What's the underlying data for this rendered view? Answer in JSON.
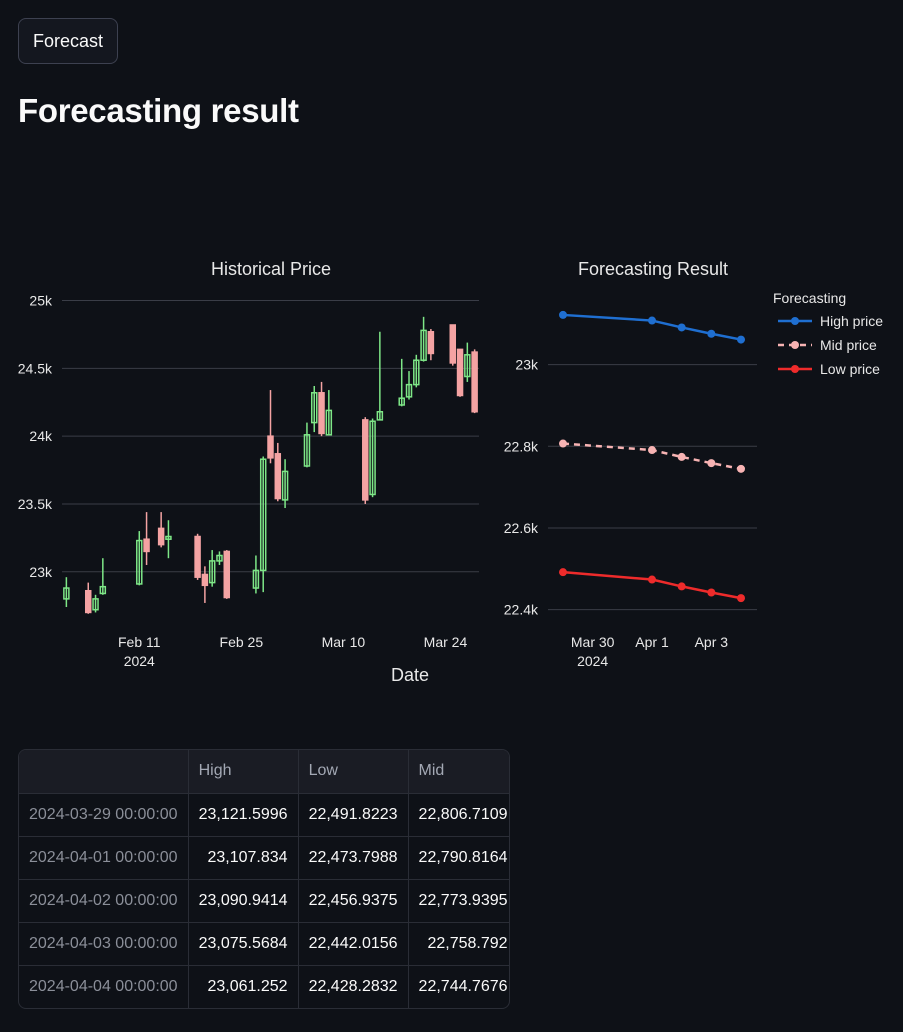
{
  "button": {
    "label": "Forecast"
  },
  "heading": "Forecasting result",
  "chart_data": [
    {
      "type": "candlestick",
      "title": "Historical Price",
      "xlabel": "Date",
      "ylabel": "",
      "ylim": [
        22600,
        25100
      ],
      "yticks": [
        23000,
        23500,
        24000,
        24500,
        25000
      ],
      "ytick_labels": [
        "23k",
        "23.5k",
        "24k",
        "24.5k",
        "25k"
      ],
      "xticks": [
        {
          "date": "2024-02-11",
          "label": "Feb 11",
          "sub": "2024"
        },
        {
          "date": "2024-02-25",
          "label": "Feb 25",
          "sub": ""
        },
        {
          "date": "2024-03-10",
          "label": "Mar 10",
          "sub": ""
        },
        {
          "date": "2024-03-24",
          "label": "Mar 24",
          "sub": ""
        }
      ],
      "colors": {
        "up": "#7ee787",
        "down": "#f4a3a3"
      },
      "candles": [
        {
          "date": "2024-02-01",
          "open": 22800,
          "high": 22960,
          "low": 22740,
          "close": 22880
        },
        {
          "date": "2024-02-04",
          "open": 22860,
          "high": 22920,
          "low": 22690,
          "close": 22700
        },
        {
          "date": "2024-02-05",
          "open": 22720,
          "high": 22830,
          "low": 22700,
          "close": 22800
        },
        {
          "date": "2024-02-06",
          "open": 22840,
          "high": 23100,
          "low": 22830,
          "close": 22890
        },
        {
          "date": "2024-02-11",
          "open": 22910,
          "high": 23300,
          "low": 22900,
          "close": 23230
        },
        {
          "date": "2024-02-12",
          "open": 23240,
          "high": 23440,
          "low": 23050,
          "close": 23150
        },
        {
          "date": "2024-02-14",
          "open": 23320,
          "high": 23440,
          "low": 23180,
          "close": 23200
        },
        {
          "date": "2024-02-15",
          "open": 23240,
          "high": 23380,
          "low": 23100,
          "close": 23260
        },
        {
          "date": "2024-02-19",
          "open": 23260,
          "high": 23280,
          "low": 22940,
          "close": 22960
        },
        {
          "date": "2024-02-20",
          "open": 22980,
          "high": 23040,
          "low": 22770,
          "close": 22900
        },
        {
          "date": "2024-02-21",
          "open": 22920,
          "high": 23160,
          "low": 22890,
          "close": 23080
        },
        {
          "date": "2024-02-22",
          "open": 23080,
          "high": 23150,
          "low": 23050,
          "close": 23120
        },
        {
          "date": "2024-02-23",
          "open": 23150,
          "high": 23160,
          "low": 22800,
          "close": 22810
        },
        {
          "date": "2024-02-27",
          "open": 22880,
          "high": 23120,
          "low": 22840,
          "close": 23010
        },
        {
          "date": "2024-02-28",
          "open": 23010,
          "high": 23850,
          "low": 22850,
          "close": 23830
        },
        {
          "date": "2024-02-29",
          "open": 24000,
          "high": 24340,
          "low": 23800,
          "close": 23840
        },
        {
          "date": "2024-03-01",
          "open": 23870,
          "high": 23950,
          "low": 23520,
          "close": 23540
        },
        {
          "date": "2024-03-02",
          "open": 23530,
          "high": 23830,
          "low": 23470,
          "close": 23740
        },
        {
          "date": "2024-03-05",
          "open": 23780,
          "high": 24100,
          "low": 23770,
          "close": 24010
        },
        {
          "date": "2024-03-06",
          "open": 24100,
          "high": 24370,
          "low": 24030,
          "close": 24320
        },
        {
          "date": "2024-03-07",
          "open": 24320,
          "high": 24400,
          "low": 24000,
          "close": 24020
        },
        {
          "date": "2024-03-08",
          "open": 24010,
          "high": 24340,
          "low": 24010,
          "close": 24190
        },
        {
          "date": "2024-03-13",
          "open": 24120,
          "high": 24140,
          "low": 23500,
          "close": 23530
        },
        {
          "date": "2024-03-14",
          "open": 23570,
          "high": 24130,
          "low": 23550,
          "close": 24110
        },
        {
          "date": "2024-03-15",
          "open": 24120,
          "high": 24770,
          "low": 24120,
          "close": 24180
        },
        {
          "date": "2024-03-18",
          "open": 24230,
          "high": 24570,
          "low": 24220,
          "close": 24280
        },
        {
          "date": "2024-03-19",
          "open": 24290,
          "high": 24480,
          "low": 24270,
          "close": 24380
        },
        {
          "date": "2024-03-20",
          "open": 24380,
          "high": 24600,
          "low": 24360,
          "close": 24560
        },
        {
          "date": "2024-03-21",
          "open": 24560,
          "high": 24880,
          "low": 24550,
          "close": 24780
        },
        {
          "date": "2024-03-22",
          "open": 24770,
          "high": 24790,
          "low": 24560,
          "close": 24610
        },
        {
          "date": "2024-03-25",
          "open": 24820,
          "high": 24820,
          "low": 24520,
          "close": 24540
        },
        {
          "date": "2024-03-26",
          "open": 24640,
          "high": 24640,
          "low": 24290,
          "close": 24300
        },
        {
          "date": "2024-03-27",
          "open": 24440,
          "high": 24690,
          "low": 24400,
          "close": 24600
        },
        {
          "date": "2024-03-28",
          "open": 24620,
          "high": 24640,
          "low": 24170,
          "close": 24180
        }
      ]
    },
    {
      "type": "line",
      "title": "Forecasting Result",
      "xlabel": "",
      "ylabel": "",
      "ylim": [
        22360,
        23190
      ],
      "yticks": [
        22400,
        22600,
        22800,
        23000
      ],
      "ytick_labels": [
        "22.4k",
        "22.6k",
        "22.8k",
        "23k"
      ],
      "xticks": [
        {
          "date": "2024-03-30",
          "label": "Mar 30",
          "sub": "2024"
        },
        {
          "date": "2024-04-01",
          "label": "Apr 1",
          "sub": ""
        },
        {
          "date": "2024-04-03",
          "label": "Apr 3",
          "sub": ""
        }
      ],
      "x": [
        "2024-03-29",
        "2024-04-01",
        "2024-04-02",
        "2024-04-03",
        "2024-04-04"
      ],
      "legend_title": "Forecasting",
      "legend_position": "right",
      "series": [
        {
          "name": "High price",
          "color": "#1f6fd1",
          "dash": false,
          "values": [
            23121.5996,
            23107.834,
            23090.9414,
            23075.5684,
            23061.252
          ]
        },
        {
          "name": "Mid price",
          "color": "#f7b3b3",
          "dash": true,
          "values": [
            22806.7109,
            22790.8164,
            22773.9395,
            22758.792,
            22744.7676
          ]
        },
        {
          "name": "Low price",
          "color": "#ee2b2b",
          "dash": false,
          "values": [
            22491.8223,
            22473.7988,
            22456.9375,
            22442.0156,
            22428.2832
          ]
        }
      ]
    }
  ],
  "table": {
    "headers": [
      "",
      "High",
      "Low",
      "Mid"
    ],
    "rows": [
      [
        "2024-03-29 00:00:00",
        "23,121.5996",
        "22,491.8223",
        "22,806.7109"
      ],
      [
        "2024-04-01 00:00:00",
        "23,107.834",
        "22,473.7988",
        "22,790.8164"
      ],
      [
        "2024-04-02 00:00:00",
        "23,090.9414",
        "22,456.9375",
        "22,773.9395"
      ],
      [
        "2024-04-03 00:00:00",
        "23,075.5684",
        "22,442.0156",
        "22,758.792"
      ],
      [
        "2024-04-04 00:00:00",
        "23,061.252",
        "22,428.2832",
        "22,744.7676"
      ]
    ]
  }
}
